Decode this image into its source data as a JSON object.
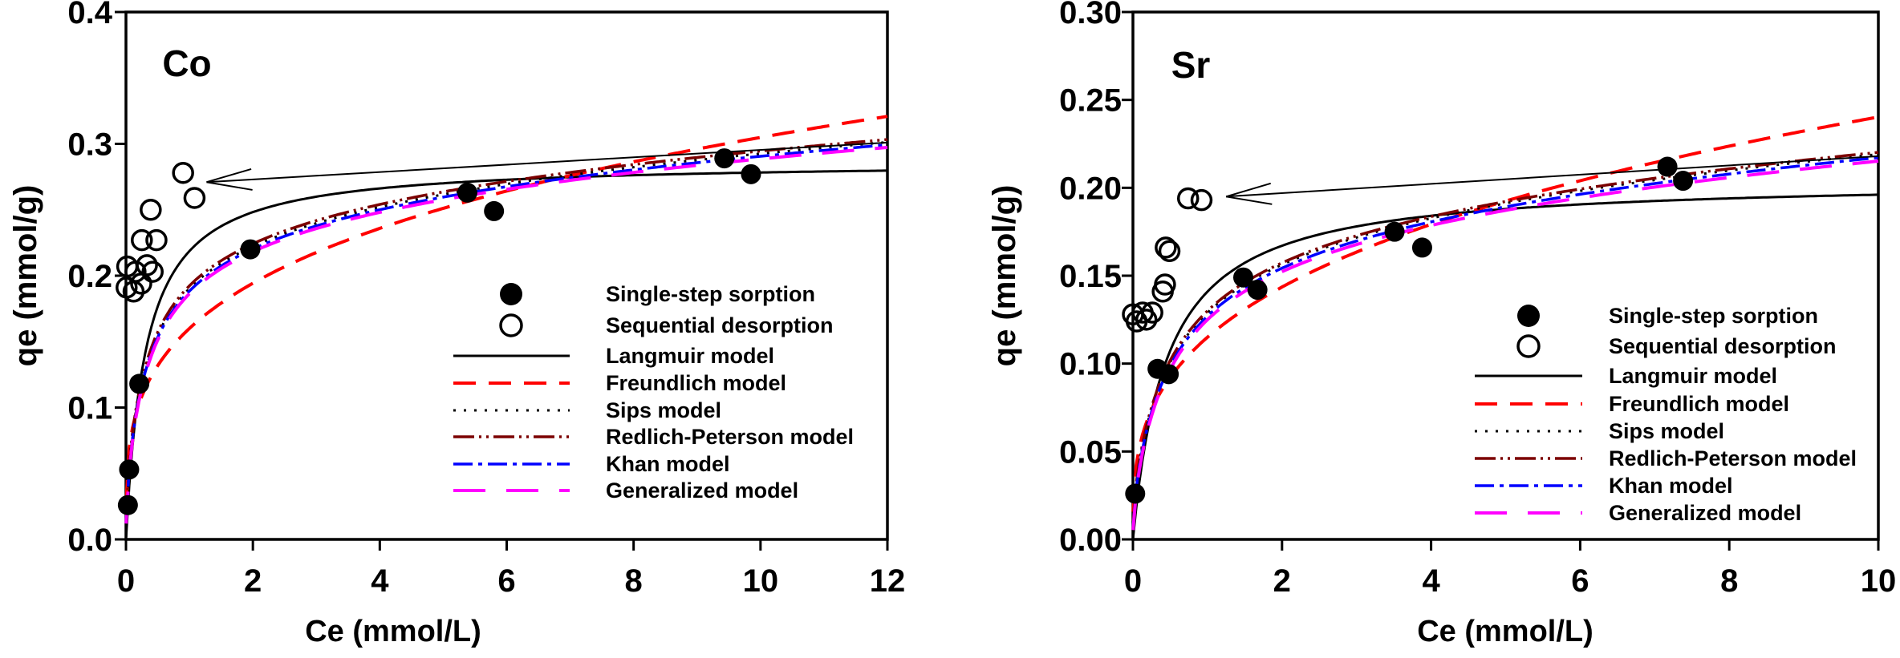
{
  "figure": {
    "background": "#ffffff",
    "description_texts": {
      "panel_left_title": "Co",
      "panel_right_title": "Sr"
    }
  },
  "chart_data": [
    {
      "type": "scatter",
      "title": "Co",
      "xlabel": "Ce (mmol/L)",
      "ylabel": "qe (mmol/g)",
      "xlim": [
        0,
        12
      ],
      "ylim": [
        0,
        0.4
      ],
      "xticks": [
        "0",
        "2",
        "4",
        "6",
        "8",
        "10",
        "12"
      ],
      "xtick_values": [
        0,
        2,
        4,
        6,
        8,
        10,
        12
      ],
      "yticks": [
        "0.0",
        "0.1",
        "0.2",
        "0.3",
        "0.4"
      ],
      "ytick_values": [
        0,
        0.1,
        0.2,
        0.3,
        0.4
      ],
      "grid": false,
      "legend_position": "inside-right-middle",
      "series": [
        {
          "name": "Single-step sorption",
          "marker": "filled-circle",
          "color": "#000000",
          "points": [
            [
              0.03,
              0.026
            ],
            [
              0.05,
              0.053
            ],
            [
              0.21,
              0.118
            ],
            [
              1.96,
              0.22
            ],
            [
              5.38,
              0.263
            ],
            [
              5.8,
              0.249
            ],
            [
              9.43,
              0.289
            ],
            [
              9.85,
              0.277
            ]
          ]
        },
        {
          "name": "Sequential desorption",
          "marker": "open-circle",
          "color": "#000000",
          "points": [
            [
              0.01,
              0.191
            ],
            [
              0.12,
              0.188
            ],
            [
              0.24,
              0.194
            ],
            [
              0.02,
              0.207
            ],
            [
              0.15,
              0.203
            ],
            [
              0.33,
              0.208
            ],
            [
              0.42,
              0.203
            ],
            [
              0.25,
              0.227
            ],
            [
              0.48,
              0.227
            ],
            [
              0.39,
              0.25
            ],
            [
              0.9,
              0.278
            ],
            [
              1.08,
              0.259
            ]
          ]
        }
      ],
      "models": [
        {
          "name": "Langmuir model",
          "fit": "langmuir",
          "color": "#000000",
          "dash": "",
          "width": 3,
          "params": {
            "qm": 0.287,
            "b": 3.2
          }
        },
        {
          "name": "Freundlich model",
          "fit": "freundlich",
          "color": "#ff0000",
          "dash": "28 16",
          "width": 4,
          "params": {
            "K": 0.16,
            "p": 0.28
          }
        },
        {
          "name": "Sips model",
          "fit": "blend",
          "color": "#000000",
          "dash": "3 10",
          "width": 3,
          "params": {
            "offset": 0.001
          }
        },
        {
          "name": "Redlich-Peterson model",
          "fit": "blend",
          "color": "#7c0000",
          "dash": "26 6 3 6 3 6",
          "width": 3.5,
          "params": {
            "offset": 0.003
          }
        },
        {
          "name": "Khan model",
          "fit": "blend",
          "color": "#0000ff",
          "dash": "24 7 5 7",
          "width": 3.5,
          "params": {
            "offset": -0.001
          }
        },
        {
          "name": "Generalized model",
          "fit": "blend",
          "color": "#ff00ff",
          "dash": "40 26",
          "width": 4,
          "params": {
            "offset": -0.003
          }
        }
      ],
      "arrow": {
        "tail": [
          12,
          0.301
        ],
        "tip": [
          1.27,
          0.271
        ]
      }
    },
    {
      "type": "scatter",
      "title": "Sr",
      "xlabel": "Ce (mmol/L)",
      "ylabel": "qe (mmol/g)",
      "xlim": [
        0,
        10
      ],
      "ylim": [
        0,
        0.3
      ],
      "xticks": [
        "0",
        "2",
        "4",
        "6",
        "8",
        "10"
      ],
      "xtick_values": [
        0,
        2,
        4,
        6,
        8,
        10
      ],
      "yticks": [
        "0.00",
        "0.05",
        "0.10",
        "0.15",
        "0.20",
        "0.25",
        "0.30"
      ],
      "ytick_values": [
        0,
        0.05,
        0.1,
        0.15,
        0.2,
        0.25,
        0.3
      ],
      "grid": false,
      "legend_position": "inside-right-middle",
      "series": [
        {
          "name": "Single-step sorption",
          "marker": "filled-circle",
          "color": "#000000",
          "points": [
            [
              0.03,
              0.026
            ],
            [
              0.33,
              0.097
            ],
            [
              0.48,
              0.094
            ],
            [
              1.48,
              0.149
            ],
            [
              1.67,
              0.142
            ],
            [
              3.51,
              0.175
            ],
            [
              3.88,
              0.166
            ],
            [
              7.17,
              0.212
            ],
            [
              7.38,
              0.204
            ]
          ]
        },
        {
          "name": "Sequential desorption",
          "marker": "open-circle",
          "color": "#000000",
          "points": [
            [
              0.0,
              0.128
            ],
            [
              0.13,
              0.129
            ],
            [
              0.26,
              0.129
            ],
            [
              0.05,
              0.124
            ],
            [
              0.18,
              0.125
            ],
            [
              0.4,
              0.141
            ],
            [
              0.43,
              0.145
            ],
            [
              0.44,
              0.166
            ],
            [
              0.49,
              0.164
            ],
            [
              0.74,
              0.194
            ],
            [
              0.92,
              0.193
            ]
          ]
        }
      ],
      "models": [
        {
          "name": "Langmuir model",
          "fit": "langmuir",
          "color": "#000000",
          "dash": "",
          "width": 3,
          "params": {
            "qm": 0.205,
            "b": 2.2
          }
        },
        {
          "name": "Freundlich model",
          "fit": "freundlich",
          "color": "#ff0000",
          "dash": "28 16",
          "width": 4,
          "params": {
            "K": 0.115,
            "p": 0.32
          }
        },
        {
          "name": "Sips model",
          "fit": "blend",
          "color": "#000000",
          "dash": "3 10",
          "width": 3,
          "params": {
            "offset": 0.001
          }
        },
        {
          "name": "Redlich-Peterson model",
          "fit": "blend",
          "color": "#7c0000",
          "dash": "26 6 3 6 3 6",
          "width": 3.5,
          "params": {
            "offset": 0.002
          }
        },
        {
          "name": "Khan model",
          "fit": "blend",
          "color": "#0000ff",
          "dash": "24 7 5 7",
          "width": 3.5,
          "params": {
            "offset": -0.001
          }
        },
        {
          "name": "Generalized model",
          "fit": "blend",
          "color": "#ff00ff",
          "dash": "40 26",
          "width": 4,
          "params": {
            "offset": -0.003
          }
        }
      ],
      "arrow": {
        "tail": [
          10,
          0.218
        ],
        "tip": [
          1.25,
          0.195
        ]
      }
    }
  ]
}
